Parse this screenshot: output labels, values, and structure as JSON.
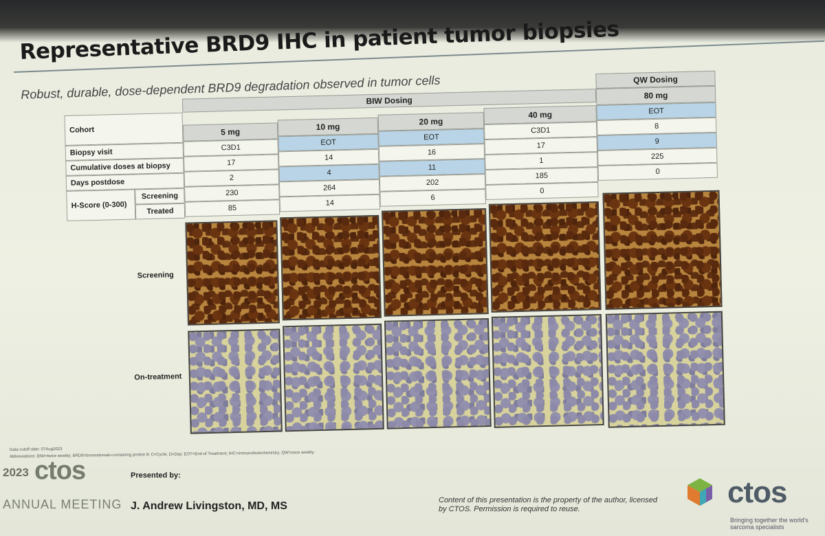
{
  "slide": {
    "title": "Representative BRD9 IHC in patient tumor biopsies",
    "subtitle": "Robust, durable, dose-dependent BRD9 degradation observed in tumor cells"
  },
  "table": {
    "group_biw": "BIW Dosing",
    "group_qw": "QW Dosing",
    "cohort_label": "Cohort",
    "cohorts": [
      "5 mg",
      "10 mg",
      "20 mg",
      "40 mg",
      "80 mg"
    ],
    "rows": {
      "biopsy_visit": {
        "label": "Biopsy visit",
        "values": [
          "C3D1",
          "EOT",
          "EOT",
          "C3D1",
          "EOT"
        ]
      },
      "cumulative": {
        "label": "Cumulative doses at biopsy",
        "values": [
          "17",
          "14",
          "16",
          "17",
          "8"
        ]
      },
      "days": {
        "label": "Days postdose",
        "values": [
          "2",
          "4",
          "11",
          "1",
          "9"
        ]
      },
      "h_screen": {
        "label": "Screening",
        "values": [
          "230",
          "264",
          "202",
          "185",
          "225"
        ]
      },
      "h_treated": {
        "label": "Treated",
        "values": [
          "85",
          "14",
          "6",
          "0",
          "0"
        ]
      }
    },
    "hscore_label": "H-Score (0-300)"
  },
  "images": {
    "screening_label": "Screening",
    "treatment_label": "On-treatment"
  },
  "footer": {
    "cutoff": "Data cutoff date: 07Aug2023",
    "abbrev": "Abbreviations: BIW=twice weekly; BRD9=bromodomain-containing protein 9; C=Cycle; D=Day; EOT=End of Treatment; IHC=immunohistochemistry; QW=once weekly.",
    "year": "2023",
    "brand": "ctos",
    "meeting": "ANNUAL MEETING",
    "presented_by": "Presented by:",
    "presenter": "J. Andrew Livingston, MD, MS",
    "copyright": "Content of this presentation is the property of the author, licensed by CTOS. Permission is required to reuse.",
    "logo_text": "ctos",
    "tagline": "Bringing together the world's sarcoma specialists"
  }
}
